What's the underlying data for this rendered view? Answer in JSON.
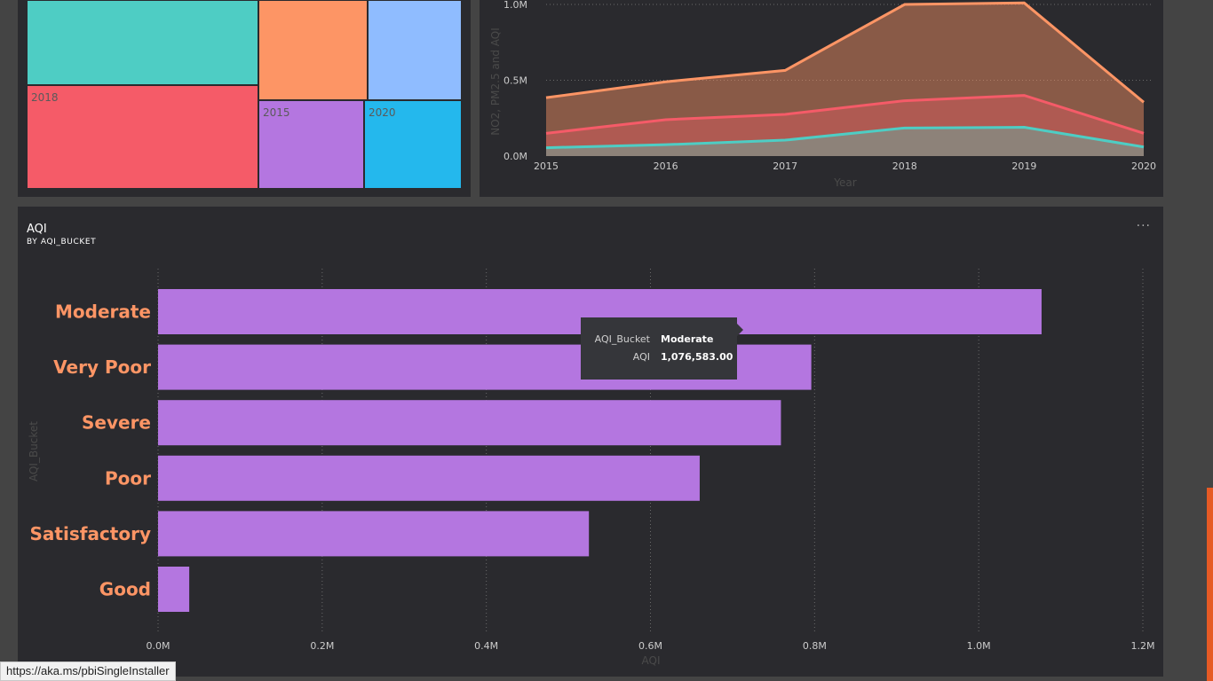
{
  "treemap": {
    "cells": [
      {
        "label": "",
        "color": "#4ecdc4"
      },
      {
        "label": "",
        "color": "#fd9565"
      },
      {
        "label": "",
        "color": "#8fbcff"
      },
      {
        "label": "2018",
        "color": "#f55b68"
      },
      {
        "label": "2015",
        "color": "#b476e0"
      },
      {
        "label": "2020",
        "color": "#24b8ed"
      }
    ]
  },
  "chart_data": [
    {
      "type": "area",
      "title": "",
      "xlabel": "Year",
      "ylabel": "NO2, PM2.5 and AQI",
      "x": [
        "2015",
        "2016",
        "2017",
        "2018",
        "2019",
        "2020"
      ],
      "yticks": [
        "0.0M",
        "0.5M",
        "1.0M"
      ],
      "ylim": [
        0,
        1000000
      ],
      "series": [
        {
          "name": "AQI",
          "color": "#fd9565",
          "values": [
            385000,
            490000,
            565000,
            1000000,
            1010000,
            355000
          ]
        },
        {
          "name": "PM2.5",
          "color": "#f55b68",
          "values": [
            150000,
            240000,
            275000,
            365000,
            400000,
            150000
          ]
        },
        {
          "name": "NO2",
          "color": "#4ecdc4",
          "values": [
            55000,
            75000,
            105000,
            185000,
            190000,
            60000
          ]
        }
      ]
    },
    {
      "type": "bar",
      "orientation": "horizontal",
      "title": "AQI",
      "subtitle": "BY AQI_BUCKET",
      "xlabel": "AQI",
      "ylabel": "AQI_Bucket",
      "bar_color": "#b476e0",
      "label_color": "#fd9565",
      "categories": [
        "Moderate",
        "Very Poor",
        "Severe",
        "Poor",
        "Satisfactory",
        "Good"
      ],
      "values": [
        1076583,
        796000,
        759000,
        660000,
        525000,
        38000
      ],
      "xticks": [
        "0.0M",
        "0.2M",
        "0.4M",
        "0.6M",
        "0.8M",
        "1.0M",
        "1.2M"
      ],
      "xlim": [
        0,
        1200000
      ]
    }
  ],
  "tooltip": {
    "bucket_key": "AQI_Bucket",
    "bucket_value": "Moderate",
    "aqi_key": "AQI",
    "aqi_value": "1,076,583.00"
  },
  "more_options": "···",
  "status_url": "https://aka.ms/pbiSingleInstaller"
}
